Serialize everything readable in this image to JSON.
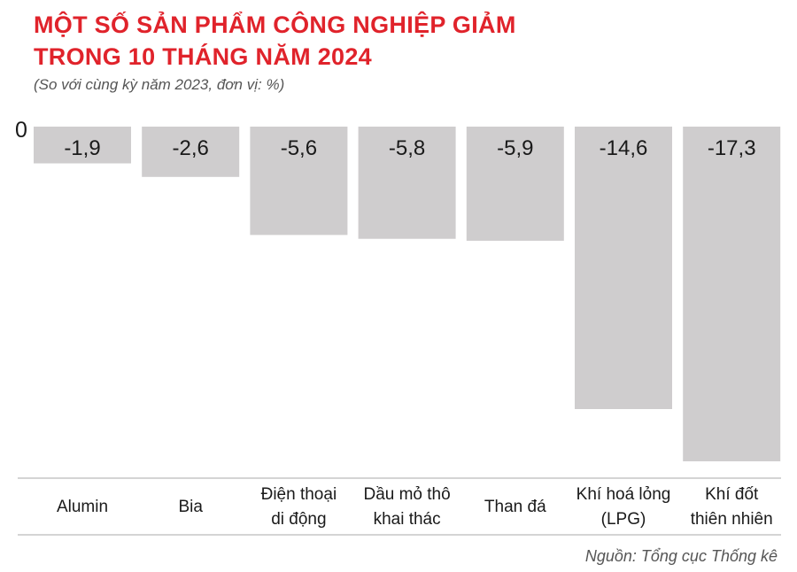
{
  "title_line1": "MỘT SỐ SẢN PHẨM CÔNG NGHIỆP GIẢM",
  "title_line2": "TRONG 10 THÁNG NĂM 2024",
  "subtitle": "(So với cùng kỳ năm 2023, đơn vị: %)",
  "source": "Nguồn: Tổng cục Thống kê",
  "colors": {
    "title": "#e0232b",
    "bar": "#cfcdce",
    "text": "#1a1a1a",
    "line": "#aaaaaa"
  },
  "chart_data": {
    "type": "bar",
    "categories": [
      [
        "Alumin"
      ],
      [
        "Bia"
      ],
      [
        "Điện thoại",
        "di động"
      ],
      [
        "Dầu mỏ thô",
        "khai thác"
      ],
      [
        "Than đá"
      ],
      [
        "Khí hoá lỏng",
        "(LPG)"
      ],
      [
        "Khí đốt",
        "thiên nhiên"
      ]
    ],
    "values": [
      -1.9,
      -2.6,
      -5.6,
      -5.8,
      -5.9,
      -14.6,
      -17.3
    ],
    "value_labels": [
      "-1,9",
      "-2,6",
      "-5,6",
      "-5,8",
      "-5,9",
      "-14,6",
      "-17,3"
    ],
    "zero_label": "0",
    "ylim": [
      -17.3,
      0
    ]
  }
}
